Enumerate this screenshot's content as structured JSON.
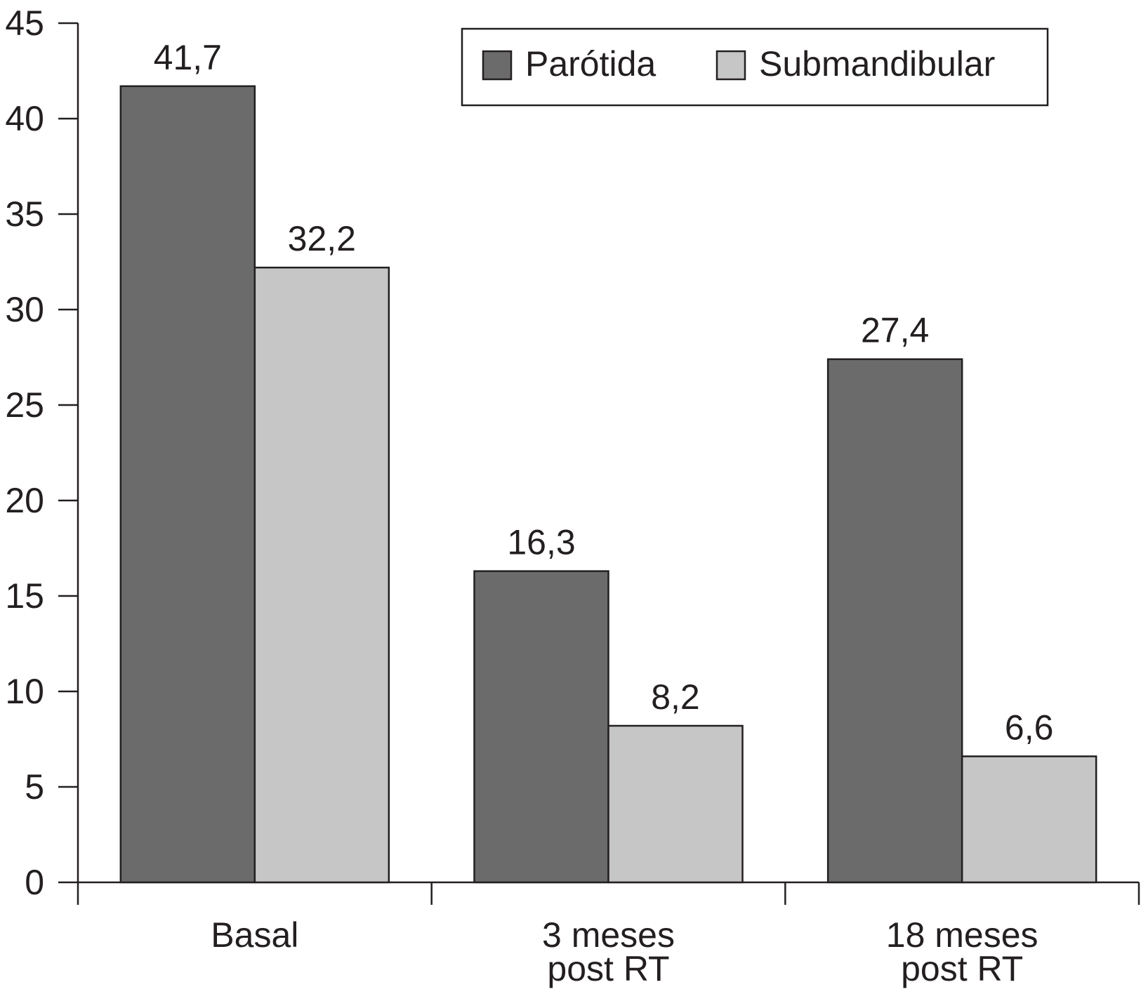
{
  "chart_data": {
    "type": "bar",
    "title": "",
    "xlabel": "",
    "ylabel": "",
    "ylim": [
      0,
      45
    ],
    "yticks": [
      0,
      5,
      10,
      15,
      20,
      25,
      30,
      35,
      40,
      45
    ],
    "grid": false,
    "legend_position": "top-right",
    "categories": [
      [
        "Basal"
      ],
      [
        "3 meses",
        "post RT"
      ],
      [
        "18 meses",
        "post RT"
      ]
    ],
    "series": [
      {
        "name": "Parótida",
        "color": "#6b6b6b",
        "values": [
          41.7,
          16.3,
          27.4
        ],
        "labels": [
          "41,7",
          "16,3",
          "27,4"
        ]
      },
      {
        "name": "Submandibular",
        "color": "#c6c6c6",
        "values": [
          32.2,
          8.2,
          6.6
        ],
        "labels": [
          "32,2",
          "8,2",
          "6,6"
        ]
      }
    ]
  }
}
